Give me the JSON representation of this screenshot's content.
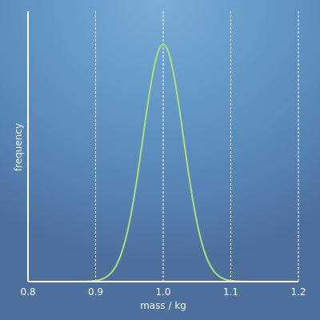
{
  "chart_data": {
    "type": "line",
    "title": "",
    "xlabel": "mass / kg",
    "ylabel": "frequency",
    "xlim": [
      0.8,
      1.2
    ],
    "ylim": [
      0,
      1.14
    ],
    "x_ticks": [
      0.8,
      0.9,
      1.0,
      1.1,
      1.2
    ],
    "x_tick_labels": [
      "0.8",
      "0.9",
      "1.0",
      "1.1",
      "1.2"
    ],
    "y_ticks_shown": false,
    "grid": "vertical-dashed",
    "legend": "none",
    "series": [
      {
        "distribution": "normal",
        "mean": 1.0,
        "std": 0.03,
        "peak": 1.0,
        "x_range": [
          0.8,
          1.2
        ],
        "color": "#a8e07a"
      }
    ],
    "colors": {
      "axis": "#ffffff",
      "grid": "#ffffff",
      "curve": "#a8e07a"
    }
  }
}
